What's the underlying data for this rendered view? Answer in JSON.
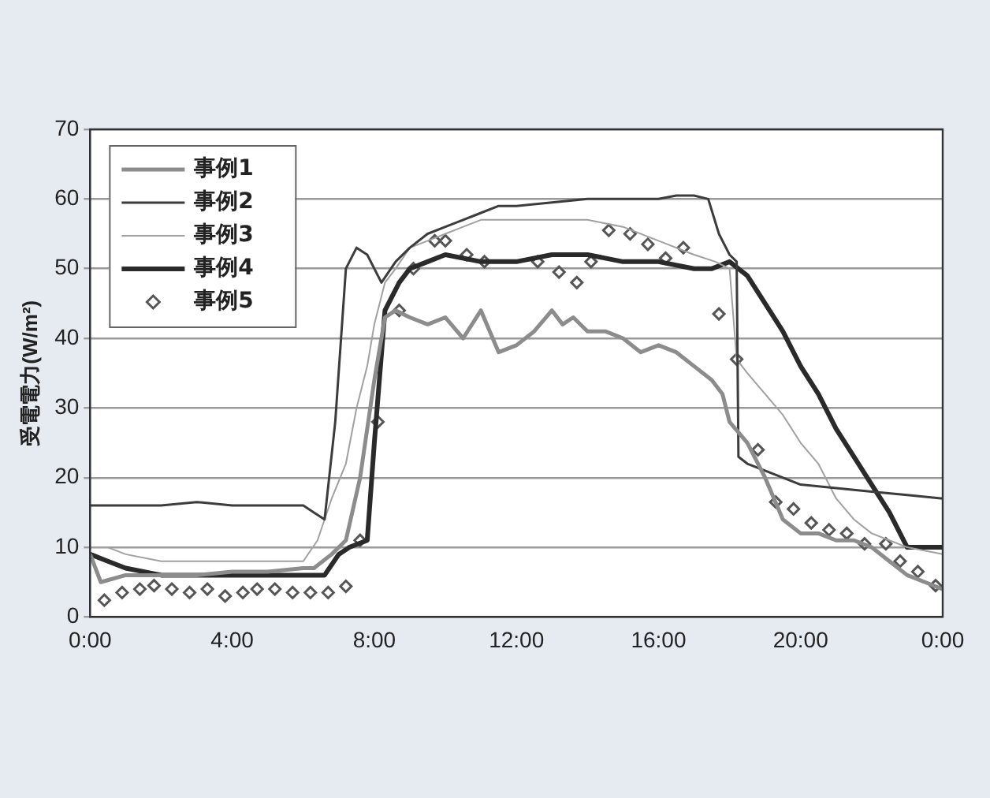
{
  "chart_data": {
    "type": "line",
    "ylabel": "受電電力(W/m²)",
    "xlim": [
      0,
      24
    ],
    "ylim": [
      0,
      70
    ],
    "xticks": [
      {
        "value": 0,
        "label": "0:00"
      },
      {
        "value": 4,
        "label": "4:00"
      },
      {
        "value": 8,
        "label": "8:00"
      },
      {
        "value": 12,
        "label": "12:00"
      },
      {
        "value": 16,
        "label": "16:00"
      },
      {
        "value": 20,
        "label": "20:00"
      },
      {
        "value": 24,
        "label": "0:00"
      }
    ],
    "yticks": [
      0,
      10,
      20,
      30,
      40,
      50,
      60,
      70
    ],
    "grid": "y",
    "legend": "top left",
    "marker": "none",
    "line_style": "solid",
    "series": [
      {
        "name": "事例1",
        "color": "#8c8c8c",
        "x": [
          0,
          0.3,
          1,
          2,
          3,
          4,
          5,
          6,
          6.3,
          6.8,
          7.2,
          7.6,
          8,
          8.3,
          8.6,
          9,
          9.5,
          10,
          10.5,
          11,
          11.5,
          12,
          12.5,
          13,
          13.3,
          13.6,
          14,
          14.5,
          15,
          15.5,
          16,
          16.5,
          17,
          17.5,
          17.8,
          18,
          18.5,
          19,
          19.5,
          20,
          20.5,
          21,
          21.5,
          22,
          22.5,
          23,
          23.5,
          24
        ],
        "values": [
          9,
          5,
          6,
          6,
          6,
          6.5,
          6.5,
          7,
          7,
          9,
          11,
          20,
          34,
          43,
          44,
          43,
          42,
          43,
          40,
          44,
          38,
          39,
          41,
          44,
          42,
          43,
          41,
          41,
          40,
          38,
          39,
          38,
          36,
          34,
          32,
          28,
          25,
          20,
          14,
          12,
          12,
          11,
          11,
          10,
          8,
          6,
          5,
          4
        ]
      },
      {
        "name": "事例2",
        "color": "#3c3c3c",
        "x": [
          0,
          1,
          2,
          3,
          4,
          5,
          6,
          6.3,
          6.6,
          6.9,
          7.2,
          7.5,
          7.8,
          8.2,
          8.6,
          9,
          9.5,
          10,
          10.5,
          11,
          11.5,
          12,
          13,
          14,
          15,
          16,
          16.5,
          17,
          17.4,
          17.7,
          18,
          18.2,
          18.25,
          18.5,
          19,
          20,
          21,
          22,
          23,
          24
        ],
        "values": [
          16,
          16,
          16,
          16.5,
          16,
          16,
          16,
          15,
          14,
          28,
          50,
          53,
          52,
          48,
          51,
          53,
          55,
          56,
          57,
          58,
          59,
          59,
          59.5,
          60,
          60,
          60,
          60.5,
          60.5,
          60,
          55,
          52,
          51,
          23,
          22,
          21,
          19,
          18.5,
          18,
          17.5,
          17
        ]
      },
      {
        "name": "事例3",
        "color": "#a0a0a0",
        "x": [
          0,
          0.5,
          1,
          2,
          3,
          4,
          5,
          6,
          6.4,
          6.8,
          7.2,
          7.5,
          7.8,
          8,
          8.3,
          8.6,
          9,
          9.5,
          10,
          10.5,
          11,
          12,
          13,
          14,
          15,
          16,
          17,
          17.6,
          18,
          18.2,
          18.5,
          19,
          19.5,
          20,
          20.5,
          21,
          21.5,
          22,
          22.5,
          23,
          24
        ],
        "values": [
          10,
          10,
          9,
          8,
          8,
          8,
          8,
          8,
          11,
          17,
          22,
          30,
          36,
          42,
          48,
          50,
          53,
          54,
          55,
          56,
          57,
          57,
          57,
          57,
          56,
          54,
          52,
          51,
          50,
          37,
          35,
          32,
          29,
          25,
          22,
          17,
          14,
          12,
          11,
          10,
          9
        ]
      },
      {
        "name": "事例4",
        "color": "#2a2a2a",
        "x": [
          0,
          0.5,
          1,
          2,
          3,
          4,
          5,
          6,
          6.6,
          7,
          7.3,
          7.8,
          8,
          8.3,
          8.7,
          9,
          9.5,
          10,
          11,
          12,
          13,
          14,
          15,
          16,
          17,
          17.5,
          18,
          18.5,
          19,
          19.5,
          20,
          20.5,
          21,
          21.5,
          22,
          22.5,
          23,
          23.5,
          24
        ],
        "values": [
          9,
          8,
          7,
          6,
          6,
          6,
          6,
          6,
          6,
          9,
          10,
          11,
          25,
          44,
          48,
          50,
          51,
          52,
          51,
          51,
          52,
          52,
          51,
          51,
          50,
          50,
          51,
          49,
          45,
          41,
          36,
          32,
          27,
          23,
          19,
          15,
          10,
          10,
          10
        ]
      },
      {
        "name": "事例5",
        "color": "#555555",
        "type": "scatter",
        "marker": "diamond",
        "x": [
          0.4,
          0.9,
          1.4,
          1.8,
          2.3,
          2.8,
          3.3,
          3.8,
          4.3,
          4.7,
          5.2,
          5.7,
          6.2,
          6.7,
          7.2,
          7.6,
          8.1,
          8.7,
          9.1,
          9.7,
          10,
          10.6,
          11.1,
          12.6,
          13.2,
          13.7,
          14.1,
          14.6,
          15.2,
          15.7,
          16.2,
          16.7,
          17.7,
          18.2,
          18.8,
          19.3,
          19.8,
          20.3,
          20.8,
          21.3,
          21.8,
          22.4,
          22.8,
          23.3,
          23.8
        ],
        "values": [
          2.4,
          3.5,
          4,
          4.5,
          4,
          3.5,
          4,
          3,
          3.5,
          4,
          4,
          3.5,
          3.5,
          3.5,
          4.4,
          11,
          28,
          44,
          50,
          54,
          54,
          52,
          51,
          51,
          49.5,
          48,
          51,
          55.5,
          55,
          53.5,
          51.5,
          53,
          43.5,
          37,
          24,
          16.5,
          15.5,
          13.5,
          12.5,
          12,
          10.5,
          10.5,
          8,
          6.5,
          4.5
        ]
      }
    ]
  }
}
